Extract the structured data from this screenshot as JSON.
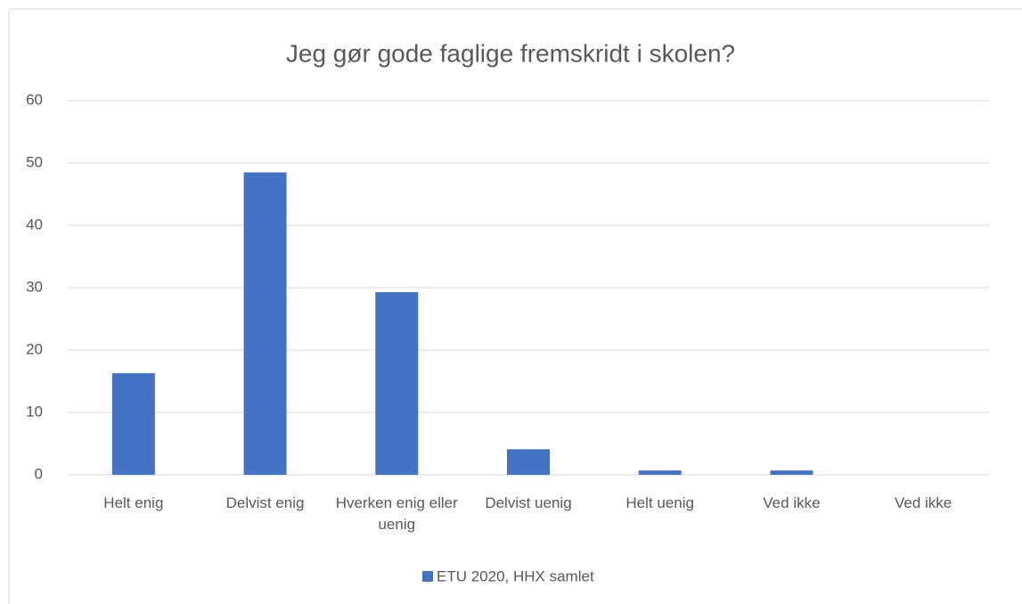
{
  "chart_data": {
    "type": "bar",
    "title": "Jeg gør gode faglige fremskridt i skolen?",
    "categories": [
      "Helt enig",
      "Delvist enig",
      "Hverken enig eller uenig",
      "Delvist uenig",
      "Helt uenig",
      "Ved ikke",
      "Ved ikke"
    ],
    "series": [
      {
        "name": "ETU 2020, HHX samlet",
        "color": "#4472c4",
        "values": [
          16.3,
          48.5,
          29.3,
          4.1,
          0.7,
          0.7,
          0
        ]
      }
    ],
    "ylim": [
      0,
      60
    ],
    "yticks": [
      0,
      10,
      20,
      30,
      40,
      50,
      60
    ],
    "grid": true,
    "legend": "bottom"
  }
}
